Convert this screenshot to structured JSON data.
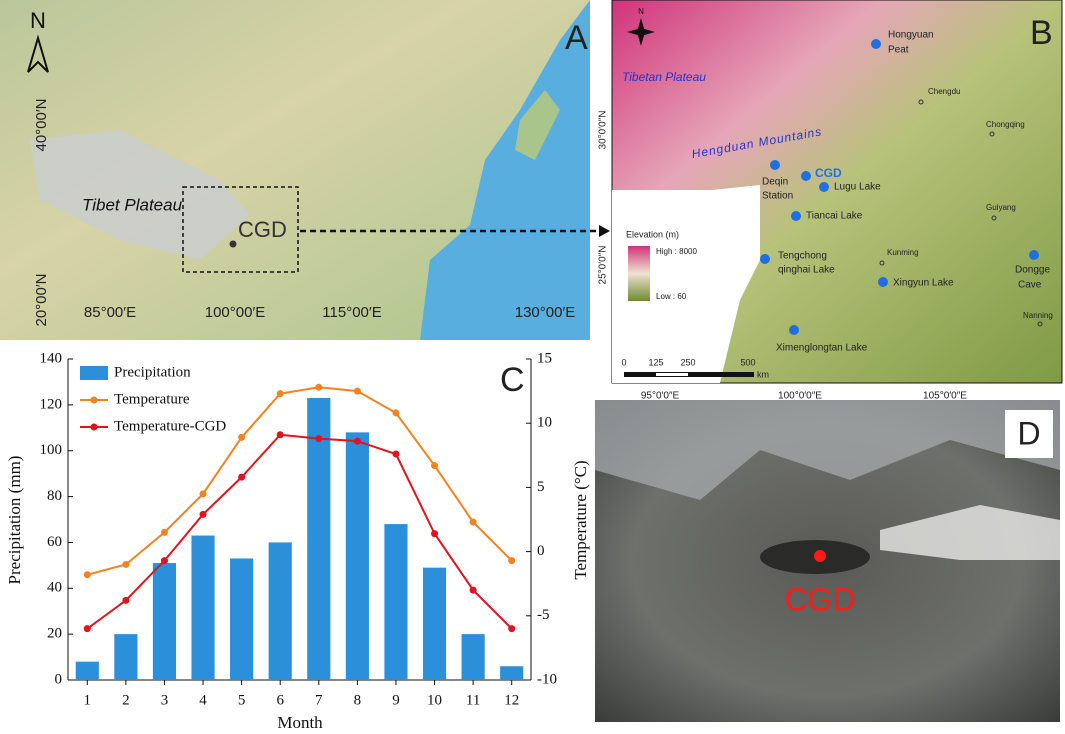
{
  "chart_data": {
    "type": "bar-line",
    "panel_label": "C",
    "categories": [
      "1",
      "2",
      "3",
      "4",
      "5",
      "6",
      "7",
      "8",
      "9",
      "10",
      "11",
      "12"
    ],
    "x_label": "Month",
    "y_label": "Precipitation (mm)",
    "y2_label": "Temperature (°C)",
    "ylim": [
      0,
      140
    ],
    "yticks": [
      0,
      20,
      40,
      60,
      80,
      100,
      120,
      140
    ],
    "y2lim": [
      -10,
      15
    ],
    "y2ticks": [
      -10,
      -5,
      0,
      5,
      10,
      15
    ],
    "series": [
      {
        "name": "Precipitation",
        "type": "bar",
        "color": "#2b8fd9",
        "values": [
          8,
          20,
          51,
          63,
          53,
          60,
          123,
          108,
          68,
          49,
          20,
          6
        ]
      },
      {
        "name": "Temperature",
        "type": "line",
        "axis": "y2",
        "color": "#f5821f",
        "values": [
          -1.8,
          -1.0,
          1.5,
          4.5,
          8.9,
          12.3,
          12.8,
          12.5,
          10.8,
          6.7,
          2.3,
          -0.7
        ]
      },
      {
        "name": "Temperature-CGD",
        "type": "line",
        "axis": "y2",
        "color": "#e0141e",
        "values": [
          -6.0,
          -3.8,
          -0.7,
          2.9,
          5.8,
          9.1,
          8.8,
          8.6,
          7.6,
          1.4,
          -3.0,
          -6.0
        ]
      }
    ]
  },
  "panels": {
    "A": {
      "label": "A",
      "north": "N",
      "plateau": "Tibet Plateau",
      "site": "CGD",
      "lat": [
        "40°00′N",
        "20°00′N"
      ],
      "lon": [
        "85°00′E",
        "100°00′E",
        "115°00′E",
        "130°00′E"
      ]
    },
    "B": {
      "label": "B",
      "north": "N",
      "region": "Tibetan Plateau",
      "mountains": "Hengduan Mountains",
      "sites": [
        [
          "Hongyuan",
          "Peat"
        ],
        [
          "Deqin",
          "Station"
        ],
        [
          "CGD"
        ],
        [
          "Lugu Lake"
        ],
        [
          "Tiancai Lake"
        ],
        [
          "Tengchong",
          "qinghai Lake"
        ],
        [
          "Xingyun Lake"
        ],
        [
          "Dongge",
          "Cave"
        ],
        [
          "Ximenglongtan Lake"
        ]
      ],
      "cities": [
        "Chengdu",
        "Chongqing",
        "Guiyang",
        "Kunming",
        "Nanning"
      ],
      "lat": [
        "30°0′0″N",
        "25°0′0″N"
      ],
      "lon": [
        "95°0′0″E",
        "100°0′0″E",
        "105°0′0″E"
      ],
      "legend_title": "Elevation (m)",
      "legend_high": "High : 8000",
      "legend_low": "Low : 60",
      "scale": [
        "0",
        "125",
        "250",
        "500",
        "km"
      ]
    },
    "D": {
      "label": "D",
      "site": "CGD"
    }
  }
}
